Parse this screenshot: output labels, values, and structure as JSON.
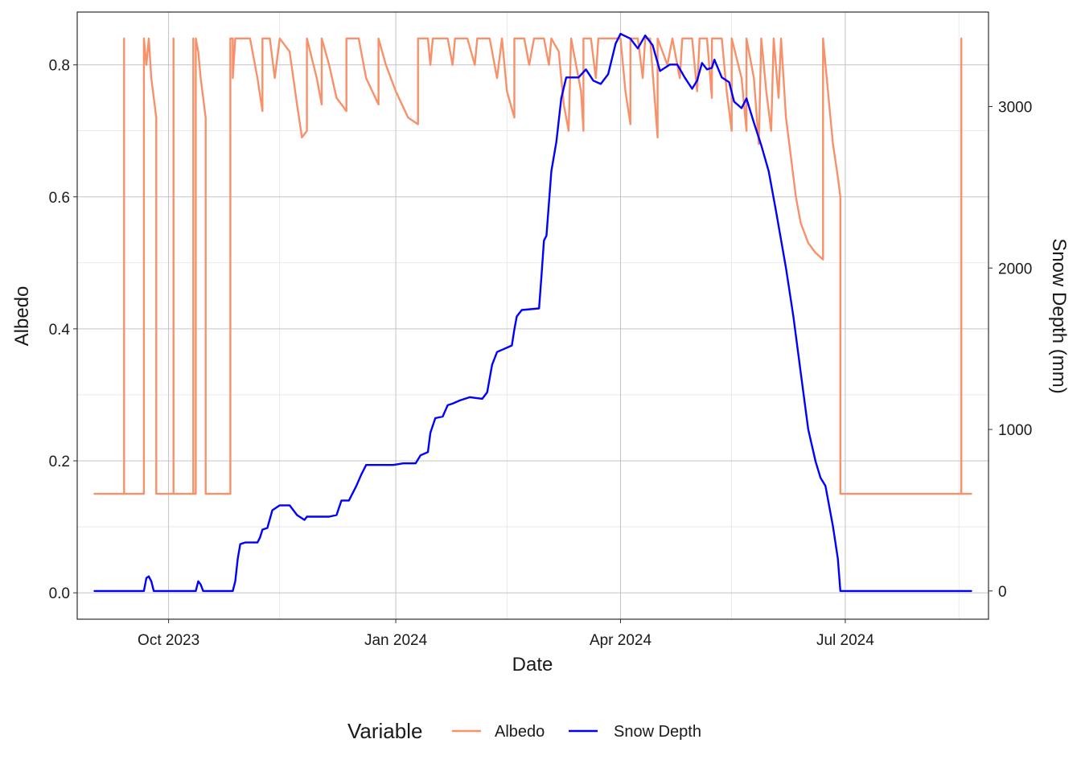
{
  "chart_data": {
    "type": "line",
    "xlabel": "Date",
    "ylabel": "Albedo",
    "y2label": "Snow Depth (mm)",
    "x_range": [
      "2023-08-25",
      "2024-08-28"
    ],
    "ylim": [
      -0.04,
      0.88
    ],
    "y2lim": [
      -175,
      3585
    ],
    "grid": true,
    "x_ticks": [
      {
        "date": "2023-10-01",
        "label": "Oct 2023"
      },
      {
        "date": "2024-01-01",
        "label": "Jan 2024"
      },
      {
        "date": "2024-04-01",
        "label": "Apr 2024"
      },
      {
        "date": "2024-07-01",
        "label": "Jul 2024"
      }
    ],
    "x_minor": [
      "2023-11-15",
      "2024-02-15",
      "2024-05-16",
      "2024-08-16"
    ],
    "y_ticks": [
      {
        "value": 0.0,
        "label": "0.0"
      },
      {
        "value": 0.2,
        "label": "0.2"
      },
      {
        "value": 0.4,
        "label": "0.4"
      },
      {
        "value": 0.6,
        "label": "0.6"
      },
      {
        "value": 0.8,
        "label": "0.8"
      }
    ],
    "y2_ticks": [
      {
        "value": 0,
        "label": "0"
      },
      {
        "value": 1000,
        "label": "1000"
      },
      {
        "value": 2000,
        "label": "2000"
      },
      {
        "value": 3000,
        "label": "3000"
      }
    ],
    "legend": {
      "title": "Variable",
      "position": "bottom",
      "entries": [
        {
          "label": "Albedo",
          "color": "#F8906A"
        },
        {
          "label": "Snow Depth",
          "color": "#0000FF"
        }
      ]
    },
    "series": [
      {
        "name": "Albedo",
        "axis": "left",
        "color": "#F8906A",
        "points": [
          [
            "2023-09-01",
            0.15
          ],
          [
            "2023-09-13",
            0.15
          ],
          [
            "2023-09-13",
            0.84
          ],
          [
            "2023-09-13",
            0.15
          ],
          [
            "2023-09-21",
            0.15
          ],
          [
            "2023-09-21",
            0.84
          ],
          [
            "2023-09-22",
            0.8
          ],
          [
            "2023-09-23",
            0.84
          ],
          [
            "2023-09-24",
            0.78
          ],
          [
            "2023-09-25",
            0.75
          ],
          [
            "2023-09-26",
            0.72
          ],
          [
            "2023-09-26",
            0.15
          ],
          [
            "2023-10-03",
            0.15
          ],
          [
            "2023-10-03",
            0.84
          ],
          [
            "2023-10-03",
            0.15
          ],
          [
            "2023-10-11",
            0.15
          ],
          [
            "2023-10-11",
            0.84
          ],
          [
            "2023-10-11",
            0.15
          ],
          [
            "2023-10-12",
            0.15
          ],
          [
            "2023-10-12",
            0.84
          ],
          [
            "2023-10-13",
            0.82
          ],
          [
            "2023-10-14",
            0.78
          ],
          [
            "2023-10-15",
            0.75
          ],
          [
            "2023-10-16",
            0.72
          ],
          [
            "2023-10-16",
            0.15
          ],
          [
            "2023-10-26",
            0.15
          ],
          [
            "2023-10-26",
            0.84
          ],
          [
            "2023-10-27",
            0.84
          ],
          [
            "2023-10-27",
            0.78
          ],
          [
            "2023-10-28",
            0.84
          ],
          [
            "2023-11-03",
            0.84
          ],
          [
            "2023-11-06",
            0.78
          ],
          [
            "2023-11-08",
            0.73
          ],
          [
            "2023-11-08",
            0.84
          ],
          [
            "2023-11-11",
            0.84
          ],
          [
            "2023-11-13",
            0.78
          ],
          [
            "2023-11-15",
            0.84
          ],
          [
            "2023-11-19",
            0.82
          ],
          [
            "2023-11-22",
            0.74
          ],
          [
            "2023-11-24",
            0.69
          ],
          [
            "2023-11-26",
            0.7
          ],
          [
            "2023-11-26",
            0.84
          ],
          [
            "2023-11-30",
            0.78
          ],
          [
            "2023-12-02",
            0.74
          ],
          [
            "2023-12-02",
            0.84
          ],
          [
            "2023-12-05",
            0.8
          ],
          [
            "2023-12-08",
            0.75
          ],
          [
            "2023-12-12",
            0.73
          ],
          [
            "2023-12-12",
            0.84
          ],
          [
            "2023-12-17",
            0.84
          ],
          [
            "2023-12-20",
            0.78
          ],
          [
            "2023-12-25",
            0.74
          ],
          [
            "2023-12-25",
            0.84
          ],
          [
            "2023-12-28",
            0.8
          ],
          [
            "2024-01-01",
            0.76
          ],
          [
            "2024-01-06",
            0.72
          ],
          [
            "2024-01-10",
            0.71
          ],
          [
            "2024-01-10",
            0.84
          ],
          [
            "2024-01-14",
            0.84
          ],
          [
            "2024-01-15",
            0.8
          ],
          [
            "2024-01-16",
            0.84
          ],
          [
            "2024-01-22",
            0.84
          ],
          [
            "2024-01-24",
            0.8
          ],
          [
            "2024-01-25",
            0.84
          ],
          [
            "2024-01-30",
            0.84
          ],
          [
            "2024-02-02",
            0.8
          ],
          [
            "2024-02-03",
            0.84
          ],
          [
            "2024-02-08",
            0.84
          ],
          [
            "2024-02-11",
            0.78
          ],
          [
            "2024-02-13",
            0.84
          ],
          [
            "2024-02-15",
            0.76
          ],
          [
            "2024-02-18",
            0.72
          ],
          [
            "2024-02-18",
            0.84
          ],
          [
            "2024-02-22",
            0.84
          ],
          [
            "2024-02-24",
            0.8
          ],
          [
            "2024-02-26",
            0.84
          ],
          [
            "2024-03-01",
            0.84
          ],
          [
            "2024-03-03",
            0.8
          ],
          [
            "2024-03-04",
            0.84
          ],
          [
            "2024-03-07",
            0.82
          ],
          [
            "2024-03-09",
            0.74
          ],
          [
            "2024-03-11",
            0.7
          ],
          [
            "2024-03-12",
            0.84
          ],
          [
            "2024-03-14",
            0.8
          ],
          [
            "2024-03-16",
            0.76
          ],
          [
            "2024-03-17",
            0.7
          ],
          [
            "2024-03-17",
            0.84
          ],
          [
            "2024-03-20",
            0.84
          ],
          [
            "2024-03-22",
            0.78
          ],
          [
            "2024-03-23",
            0.84
          ],
          [
            "2024-04-01",
            0.84
          ],
          [
            "2024-04-03",
            0.76
          ],
          [
            "2024-04-05",
            0.71
          ],
          [
            "2024-04-05",
            0.84
          ],
          [
            "2024-04-08",
            0.84
          ],
          [
            "2024-04-10",
            0.78
          ],
          [
            "2024-04-11",
            0.84
          ],
          [
            "2024-04-13",
            0.84
          ],
          [
            "2024-04-15",
            0.74
          ],
          [
            "2024-04-16",
            0.69
          ],
          [
            "2024-04-16",
            0.84
          ],
          [
            "2024-04-20",
            0.8
          ],
          [
            "2024-04-22",
            0.84
          ],
          [
            "2024-04-25",
            0.78
          ],
          [
            "2024-04-26",
            0.84
          ],
          [
            "2024-04-30",
            0.84
          ],
          [
            "2024-05-02",
            0.76
          ],
          [
            "2024-05-03",
            0.84
          ],
          [
            "2024-05-06",
            0.84
          ],
          [
            "2024-05-08",
            0.75
          ],
          [
            "2024-05-08",
            0.84
          ],
          [
            "2024-05-12",
            0.84
          ],
          [
            "2024-05-14",
            0.76
          ],
          [
            "2024-05-16",
            0.7
          ],
          [
            "2024-05-16",
            0.84
          ],
          [
            "2024-05-20",
            0.78
          ],
          [
            "2024-05-22",
            0.7
          ],
          [
            "2024-05-22",
            0.84
          ],
          [
            "2024-05-25",
            0.78
          ],
          [
            "2024-05-27",
            0.68
          ],
          [
            "2024-05-28",
            0.84
          ],
          [
            "2024-05-30",
            0.76
          ],
          [
            "2024-06-01",
            0.7
          ],
          [
            "2024-06-02",
            0.84
          ],
          [
            "2024-06-04",
            0.75
          ],
          [
            "2024-06-05",
            0.84
          ],
          [
            "2024-06-07",
            0.72
          ],
          [
            "2024-06-09",
            0.66
          ],
          [
            "2024-06-11",
            0.6
          ],
          [
            "2024-06-13",
            0.56
          ],
          [
            "2024-06-16",
            0.53
          ],
          [
            "2024-06-19",
            0.515
          ],
          [
            "2024-06-22",
            0.505
          ],
          [
            "2024-06-22",
            0.84
          ],
          [
            "2024-06-24",
            0.76
          ],
          [
            "2024-06-26",
            0.68
          ],
          [
            "2024-06-28",
            0.63
          ],
          [
            "2024-06-29",
            0.6
          ],
          [
            "2024-06-29",
            0.15
          ],
          [
            "2024-08-17",
            0.15
          ],
          [
            "2024-08-17",
            0.84
          ],
          [
            "2024-08-17",
            0.15
          ],
          [
            "2024-08-21",
            0.15
          ]
        ]
      },
      {
        "name": "Snow Depth",
        "axis": "right",
        "color": "#0000FF",
        "points": [
          [
            "2023-09-01",
            0
          ],
          [
            "2023-09-21",
            0
          ],
          [
            "2023-09-22",
            80
          ],
          [
            "2023-09-23",
            90
          ],
          [
            "2023-09-24",
            60
          ],
          [
            "2023-09-25",
            0
          ],
          [
            "2023-10-12",
            0
          ],
          [
            "2023-10-13",
            60
          ],
          [
            "2023-10-14",
            40
          ],
          [
            "2023-10-15",
            0
          ],
          [
            "2023-10-27",
            0
          ],
          [
            "2023-10-28",
            60
          ],
          [
            "2023-10-29",
            200
          ],
          [
            "2023-10-30",
            290
          ],
          [
            "2023-11-01",
            300
          ],
          [
            "2023-11-06",
            300
          ],
          [
            "2023-11-07",
            330
          ],
          [
            "2023-11-08",
            380
          ],
          [
            "2023-11-10",
            390
          ],
          [
            "2023-11-12",
            500
          ],
          [
            "2023-11-15",
            530
          ],
          [
            "2023-11-19",
            530
          ],
          [
            "2023-11-22",
            470
          ],
          [
            "2023-11-25",
            440
          ],
          [
            "2023-11-26",
            460
          ],
          [
            "2023-12-05",
            460
          ],
          [
            "2023-12-08",
            470
          ],
          [
            "2023-12-10",
            560
          ],
          [
            "2023-12-13",
            560
          ],
          [
            "2023-12-16",
            650
          ],
          [
            "2023-12-18",
            720
          ],
          [
            "2023-12-20",
            780
          ],
          [
            "2023-12-31",
            780
          ],
          [
            "2024-01-04",
            790
          ],
          [
            "2024-01-06",
            790
          ],
          [
            "2024-01-09",
            790
          ],
          [
            "2024-01-11",
            840
          ],
          [
            "2024-01-14",
            860
          ],
          [
            "2024-01-15",
            980
          ],
          [
            "2024-01-17",
            1070
          ],
          [
            "2024-01-20",
            1080
          ],
          [
            "2024-01-22",
            1150
          ],
          [
            "2024-01-24",
            1160
          ],
          [
            "2024-01-27",
            1180
          ],
          [
            "2024-01-31",
            1200
          ],
          [
            "2024-02-05",
            1190
          ],
          [
            "2024-02-07",
            1230
          ],
          [
            "2024-02-09",
            1400
          ],
          [
            "2024-02-11",
            1480
          ],
          [
            "2024-02-14",
            1500
          ],
          [
            "2024-02-17",
            1520
          ],
          [
            "2024-02-18",
            1620
          ],
          [
            "2024-02-19",
            1700
          ],
          [
            "2024-02-21",
            1740
          ],
          [
            "2024-02-28",
            1750
          ],
          [
            "2024-02-29",
            1950
          ],
          [
            "2024-03-01",
            2170
          ],
          [
            "2024-03-02",
            2200
          ],
          [
            "2024-03-04",
            2600
          ],
          [
            "2024-03-06",
            2780
          ],
          [
            "2024-03-08",
            3050
          ],
          [
            "2024-03-10",
            3180
          ],
          [
            "2024-03-15",
            3180
          ],
          [
            "2024-03-18",
            3230
          ],
          [
            "2024-03-21",
            3160
          ],
          [
            "2024-03-24",
            3140
          ],
          [
            "2024-03-27",
            3200
          ],
          [
            "2024-03-30",
            3390
          ],
          [
            "2024-04-01",
            3450
          ],
          [
            "2024-04-05",
            3420
          ],
          [
            "2024-04-08",
            3360
          ],
          [
            "2024-04-11",
            3440
          ],
          [
            "2024-04-14",
            3380
          ],
          [
            "2024-04-17",
            3220
          ],
          [
            "2024-04-21",
            3260
          ],
          [
            "2024-04-24",
            3260
          ],
          [
            "2024-04-27",
            3180
          ],
          [
            "2024-04-30",
            3110
          ],
          [
            "2024-05-02",
            3160
          ],
          [
            "2024-05-04",
            3270
          ],
          [
            "2024-05-06",
            3230
          ],
          [
            "2024-05-08",
            3240
          ],
          [
            "2024-05-09",
            3290
          ],
          [
            "2024-05-12",
            3180
          ],
          [
            "2024-05-15",
            3150
          ],
          [
            "2024-05-17",
            3030
          ],
          [
            "2024-05-20",
            2990
          ],
          [
            "2024-05-22",
            3050
          ],
          [
            "2024-05-25",
            2900
          ],
          [
            "2024-05-28",
            2760
          ],
          [
            "2024-05-31",
            2600
          ],
          [
            "2024-06-03",
            2350
          ],
          [
            "2024-06-07",
            2000
          ],
          [
            "2024-06-10",
            1700
          ],
          [
            "2024-06-13",
            1350
          ],
          [
            "2024-06-16",
            1000
          ],
          [
            "2024-06-19",
            800
          ],
          [
            "2024-06-21",
            700
          ],
          [
            "2024-06-23",
            650
          ],
          [
            "2024-06-26",
            400
          ],
          [
            "2024-06-28",
            200
          ],
          [
            "2024-06-29",
            0
          ],
          [
            "2024-08-21",
            0
          ]
        ]
      }
    ]
  }
}
